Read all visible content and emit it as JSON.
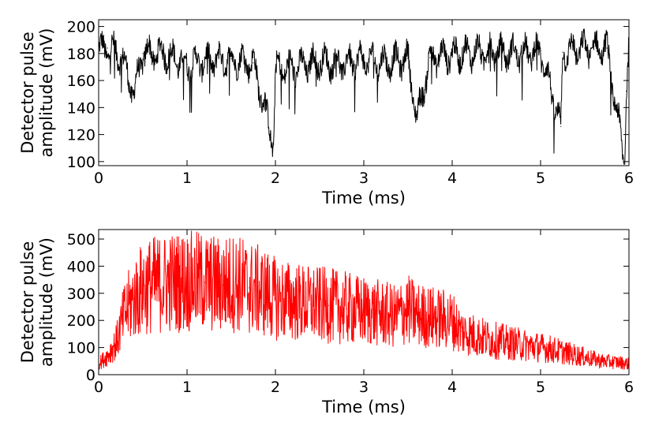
{
  "chart_data": [
    {
      "type": "line",
      "xlabel": "Time (ms)",
      "ylabel_lines": [
        "Detector pulse",
        "amplitude (mV)"
      ],
      "xlim": [
        0,
        6
      ],
      "ylim": [
        97,
        205
      ],
      "xticks": [
        "0",
        "1",
        "2",
        "3",
        "4",
        "5",
        "6"
      ],
      "yticks": [
        "100",
        "120",
        "140",
        "160",
        "180",
        "200"
      ],
      "grid": false,
      "series": [
        {
          "color": "#000000",
          "x": [
            0,
            0.1,
            0.25,
            0.4,
            0.5,
            0.75,
            1,
            1.25,
            1.5,
            1.75,
            1.98,
            2,
            2.25,
            2.5,
            2.75,
            3,
            3.25,
            3.5,
            3.6,
            3.75,
            4,
            4.25,
            4.5,
            4.75,
            5,
            5.23,
            5.25,
            5.5,
            5.75,
            5.95,
            5.97,
            6
          ],
          "values": [
            182,
            184,
            179,
            150,
            180,
            180,
            172,
            175,
            176,
            173,
            113,
            168,
            170,
            174,
            172,
            176,
            173,
            176,
            131,
            177,
            179,
            181,
            181,
            180,
            182,
            126,
            181,
            184,
            184,
            100,
            152,
            185
          ]
        }
      ]
    },
    {
      "type": "line",
      "xlabel": "Time (ms)",
      "ylabel_lines": [
        "Detector pulse",
        "amplitude (mV)"
      ],
      "xlim": [
        0,
        6
      ],
      "ylim": [
        0,
        535
      ],
      "xticks": [
        "0",
        "1",
        "2",
        "3",
        "4",
        "5",
        "6"
      ],
      "yticks": [
        "0",
        "100",
        "200",
        "300",
        "400",
        "500"
      ],
      "grid": false,
      "series": [
        {
          "color": "#ff0000",
          "x": [
            0,
            0.1,
            0.2,
            0.3,
            0.4,
            0.5,
            0.6,
            0.8,
            1,
            1.2,
            1.4,
            1.55,
            1.7,
            1.9,
            2,
            2.2,
            2.4,
            2.6,
            2.8,
            3,
            3.2,
            3.35,
            3.5,
            3.6,
            3.8,
            4,
            4.1,
            4.3,
            4.5,
            4.7,
            4.9,
            5.1,
            5.3,
            5.5,
            5.7,
            5.9,
            6
          ],
          "values": [
            40,
            70,
            120,
            230,
            280,
            320,
            330,
            340,
            345,
            340,
            330,
            340,
            320,
            300,
            280,
            270,
            260,
            255,
            245,
            235,
            225,
            215,
            240,
            220,
            210,
            200,
            160,
            140,
            125,
            115,
            105,
            95,
            80,
            65,
            50,
            45,
            40
          ]
        }
      ]
    }
  ]
}
